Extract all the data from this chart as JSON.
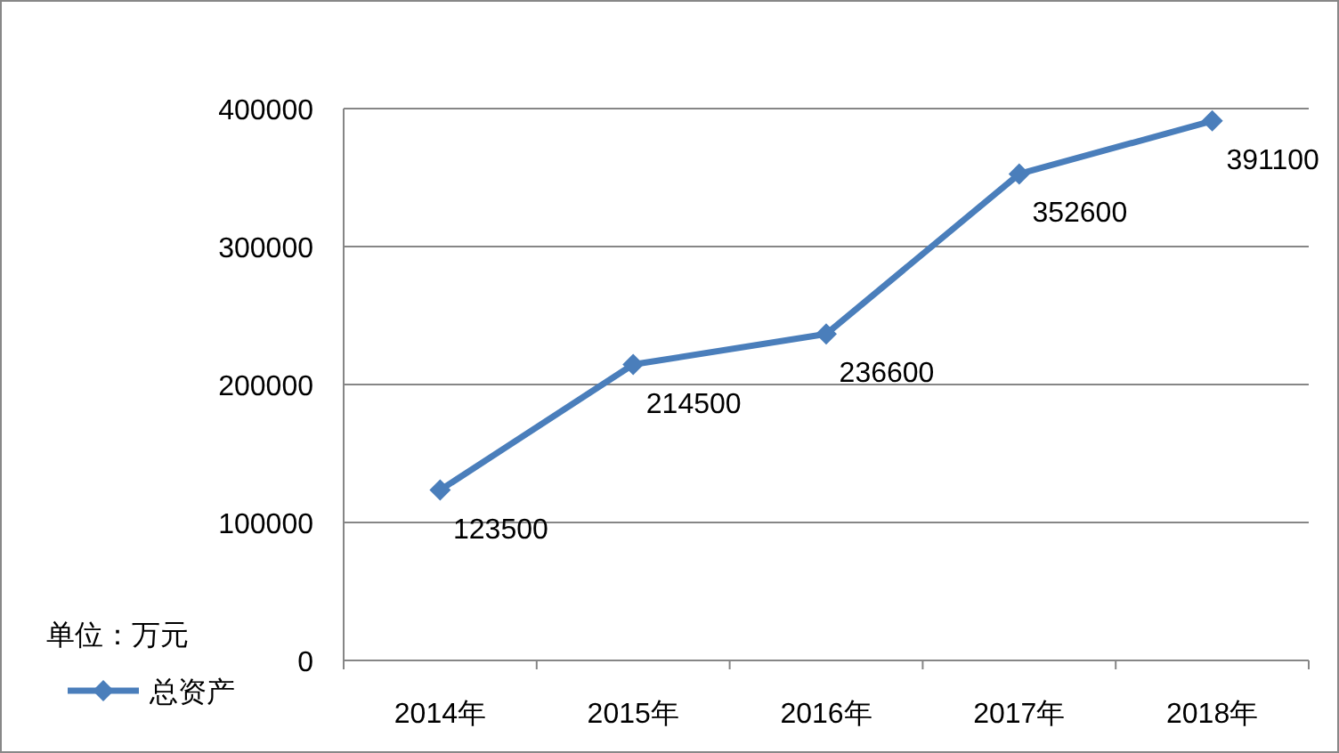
{
  "chart_data": {
    "type": "line",
    "categories": [
      "2014年",
      "2015年",
      "2016年",
      "2017年",
      "2018年"
    ],
    "series": [
      {
        "name": "总资产",
        "color": "#4a7ebb",
        "values": [
          123500,
          214500,
          236600,
          352600,
          391100
        ]
      }
    ],
    "ylim": [
      0,
      400000
    ],
    "yticks": [
      0,
      100000,
      200000,
      300000,
      400000
    ],
    "grid": "y",
    "legend": "left",
    "marker": "diamond",
    "line_style": "solid",
    "data_labels": true,
    "annotations": [
      "单位：万元"
    ]
  }
}
